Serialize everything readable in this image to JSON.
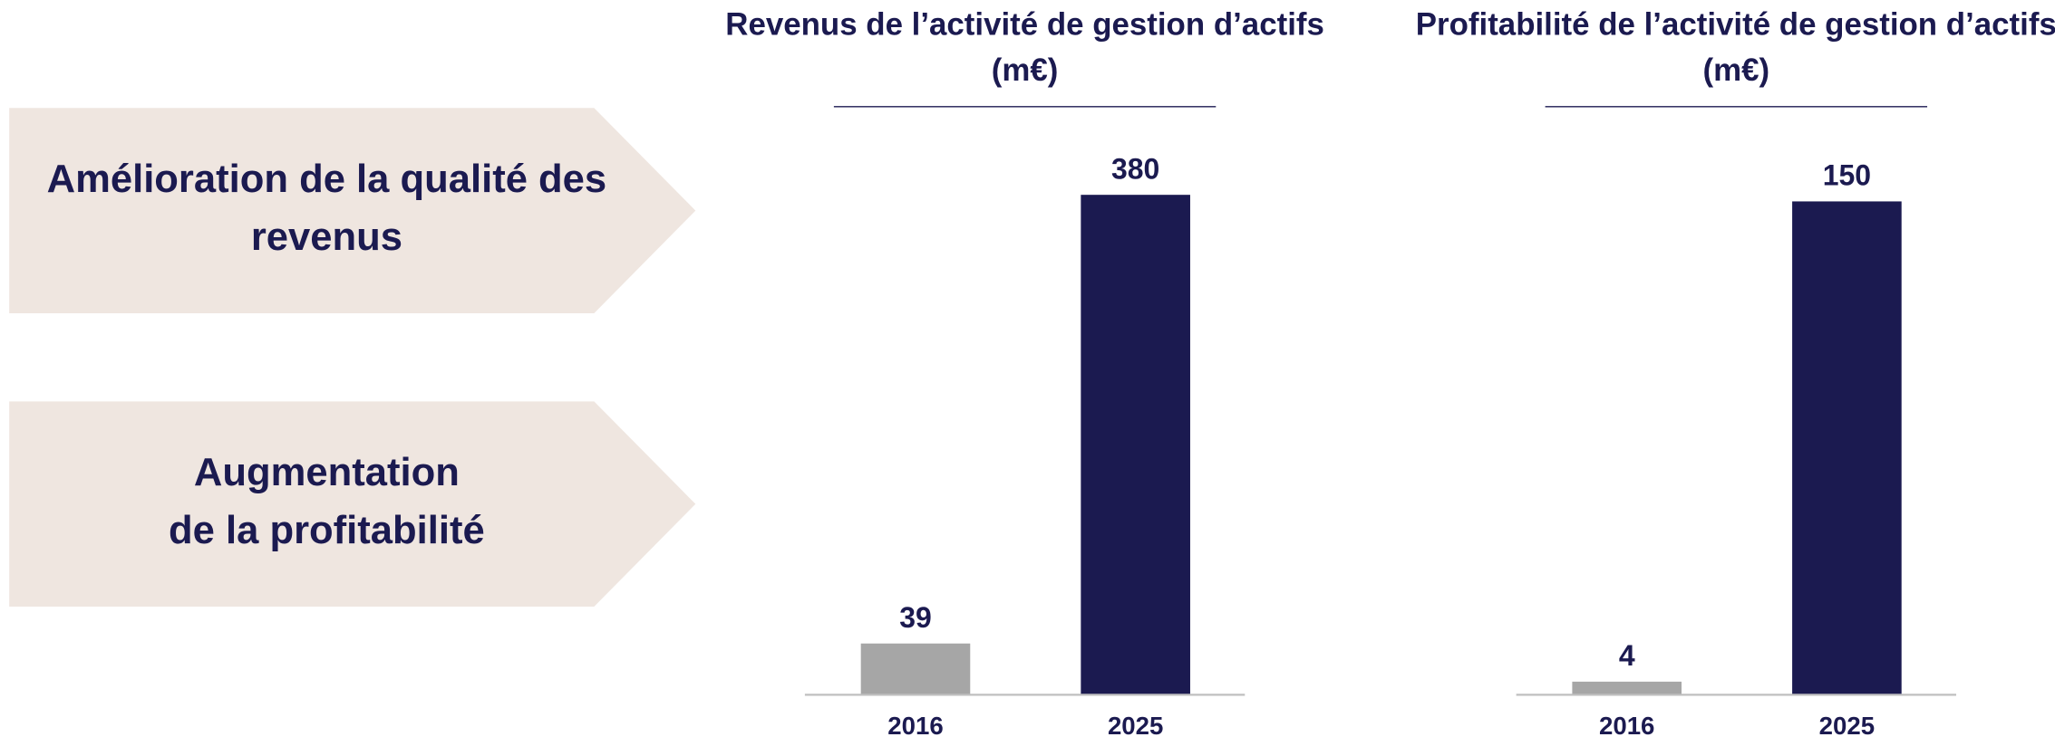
{
  "panels": [
    {
      "lines": [
        "Amélioration de la qualité des",
        "revenus"
      ]
    },
    {
      "lines": [
        "Augmentation",
        "de la profitabilité"
      ]
    }
  ],
  "chart_data": [
    {
      "type": "bar",
      "title": "Revenus de l’activité de gestion d’actifs",
      "subtitle": "(m€)",
      "categories": [
        "2016",
        "2025"
      ],
      "values": [
        39,
        380
      ],
      "colors": [
        "#a6a6a6",
        "#1b1a50"
      ],
      "ylim": [
        0,
        400
      ]
    },
    {
      "type": "bar",
      "title": "Profitabilité de l’activité de gestion d’actifs",
      "subtitle": "(m€)",
      "categories": [
        "2016",
        "2025"
      ],
      "values": [
        4,
        150
      ],
      "colors": [
        "#a6a6a6",
        "#1b1a50"
      ],
      "ylim": [
        0,
        160
      ]
    }
  ]
}
